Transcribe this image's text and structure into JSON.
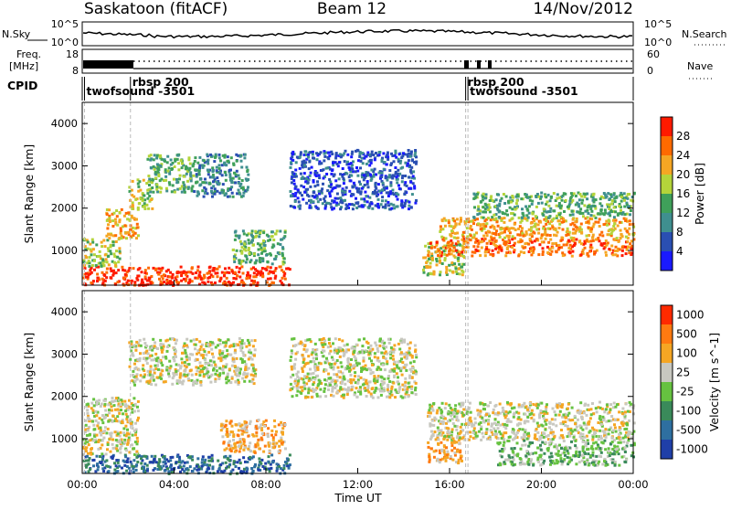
{
  "header": {
    "station": "Saskatoon (fitACF)",
    "beam": "Beam 12",
    "date": "14/Nov/2012"
  },
  "top_panels": {
    "nsky_label": "N.Sky",
    "nsky_ticks": [
      "10^5",
      "10^0"
    ],
    "nsearch_label": "N.Search",
    "nsearch_ticks": [
      "10^5",
      "10^0"
    ],
    "freq_label_1": "Freq.",
    "freq_label_2": "[MHz]",
    "freq_ticks": [
      "18",
      "8"
    ],
    "nave_label": "Nave",
    "nave_ticks": [
      "60",
      "0"
    ],
    "cpid_label": "CPID",
    "cpid_entries": [
      {
        "text": "twofsound -3501",
        "time_h": 0.1,
        "row": 1
      },
      {
        "text": "rbsp 200",
        "time_h": 2.1,
        "row": 0
      },
      {
        "text": "rbsp 200",
        "time_h": 16.7,
        "row": 0
      },
      {
        "text": "twofsound -3501",
        "time_h": 16.8,
        "row": 1
      }
    ]
  },
  "time_axis": {
    "ticks": [
      "00:00",
      "04:00",
      "08:00",
      "12:00",
      "16:00",
      "20:00",
      "00:00"
    ],
    "label": "Time UT"
  },
  "chart_data": [
    {
      "type": "heatmap",
      "title": "",
      "xlabel": "Time UT",
      "ylabel": "Slant Range [km]",
      "xlim": [
        0,
        24
      ],
      "ylim": [
        180,
        4500
      ],
      "yticks": [
        "1000",
        "2000",
        "3000",
        "4000"
      ],
      "colorbar_label": "Power [dB]",
      "colorbar_ticks": [
        "4",
        "8",
        "12",
        "16",
        "20",
        "24",
        "28"
      ],
      "colorbar_colors": [
        "#1a1aff",
        "#2a4fb2",
        "#3f8f8f",
        "#3fa05a",
        "#b4d43a",
        "#f5a623",
        "#ff6a00",
        "#ff1a00"
      ],
      "regions": [
        {
          "t": [
            0.0,
            9.0
          ],
          "r": [
            200,
            650
          ],
          "level": 7
        },
        {
          "t": [
            0.0,
            1.6
          ],
          "r": [
            650,
            1300
          ],
          "level": 4
        },
        {
          "t": [
            1.0,
            2.4
          ],
          "r": [
            1300,
            2000
          ],
          "level": 5
        },
        {
          "t": [
            2.0,
            3.0
          ],
          "r": [
            2000,
            2700
          ],
          "level": 4
        },
        {
          "t": [
            2.8,
            4.8
          ],
          "r": [
            2400,
            3300
          ],
          "level": 3
        },
        {
          "t": [
            4.8,
            7.2
          ],
          "r": [
            2300,
            3300
          ],
          "level": 2
        },
        {
          "t": [
            6.5,
            8.8
          ],
          "r": [
            700,
            1500
          ],
          "level": 3
        },
        {
          "t": [
            9.0,
            14.5
          ],
          "r": [
            2000,
            3400
          ],
          "level": 1
        },
        {
          "t": [
            14.8,
            16.6
          ],
          "r": [
            450,
            1200
          ],
          "level": 4
        },
        {
          "t": [
            15.0,
            24.0
          ],
          "r": [
            900,
            1300
          ],
          "level": 6
        },
        {
          "t": [
            15.5,
            24.0
          ],
          "r": [
            1300,
            1800
          ],
          "level": 5
        },
        {
          "t": [
            17.0,
            24.0
          ],
          "r": [
            1800,
            2400
          ],
          "level": 3
        }
      ]
    },
    {
      "type": "heatmap",
      "title": "",
      "xlabel": "Time UT",
      "ylabel": "Slant Range [km]",
      "xlim": [
        0,
        24
      ],
      "ylim": [
        180,
        4500
      ],
      "yticks": [
        "1000",
        "2000",
        "3000",
        "4000"
      ],
      "colorbar_label": "Velocity [m s^-1]",
      "colorbar_ticks": [
        "1000",
        "500",
        "100",
        "25",
        "-25",
        "-100",
        "-500",
        "-1000"
      ],
      "colorbar_colors": [
        "#1f3fa8",
        "#2e6fa0",
        "#3a8a5a",
        "#66c240",
        "#c8c8c0",
        "#f5a623",
        "#ff7a10",
        "#ff2a00"
      ],
      "regions": [
        {
          "t": [
            0.0,
            9.0
          ],
          "r": [
            200,
            650
          ],
          "level": 1
        },
        {
          "t": [
            0.0,
            2.4
          ],
          "r": [
            650,
            2000
          ],
          "level": 4
        },
        {
          "t": [
            2.0,
            7.5
          ],
          "r": [
            2300,
            3400
          ],
          "level": 4
        },
        {
          "t": [
            6.0,
            8.8
          ],
          "r": [
            700,
            1500
          ],
          "level": 5
        },
        {
          "t": [
            9.0,
            14.5
          ],
          "r": [
            2000,
            3400
          ],
          "level": 4
        },
        {
          "t": [
            15.0,
            16.5
          ],
          "r": [
            450,
            1100
          ],
          "level": 5
        },
        {
          "t": [
            15.0,
            24.0
          ],
          "r": [
            1000,
            1900
          ],
          "level": 4
        },
        {
          "t": [
            18.0,
            24.0
          ],
          "r": [
            400,
            1000
          ],
          "level": 3
        }
      ]
    }
  ]
}
